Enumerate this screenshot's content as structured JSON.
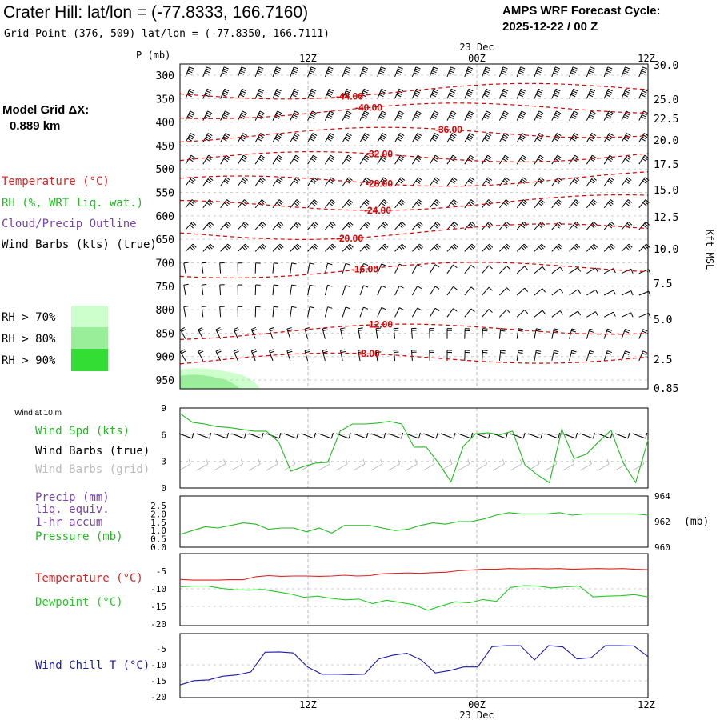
{
  "header": {
    "title": "Crater Hill:  lat/lon = (-77.8333, 166.7160)",
    "grid_point": "Grid Point (376, 509) lat/lon = (-77.8350, 166.7111)",
    "cycle_label": "AMPS WRF Forecast Cycle:",
    "cycle_value": "2025-12-22 / 00  Z",
    "grid_dx_label": "Model Grid ΔX:",
    "grid_dx_value": "0.889 km"
  },
  "legend": {
    "temperature": "Temperature (°C)",
    "rh": "RH (%, WRT liq. wat.)",
    "cloud": "Cloud/Precip Outline",
    "wind": "Wind Barbs (kts) (true)",
    "rh70": "RH > 70%",
    "rh80": "RH > 80%",
    "rh90": "RH > 90%",
    "colors": {
      "rh70": "#ccffcc",
      "rh80": "#99ee99",
      "rh90": "#33dd33"
    }
  },
  "time_axis": {
    "top_date": "23 Dec",
    "bottom_date": "23 Dec",
    "ticks": [
      "12Z",
      "00Z",
      "12Z"
    ]
  },
  "chart_data": [
    {
      "id": "cross_section",
      "type": "contour",
      "ylabel": "P (mb)",
      "pressure_ticks": [
        "300",
        "350",
        "400",
        "450",
        "500",
        "550",
        "600",
        "650",
        "700",
        "750",
        "800",
        "850",
        "900",
        "950"
      ],
      "height_label": "Kft MSL",
      "height_ticks": [
        "30.0",
        "25.0",
        "22.5",
        "20.0",
        "17.5",
        "15.0",
        "12.5",
        "10.0",
        "7.5",
        "5.0",
        "2.5",
        "0.85"
      ],
      "isotherms": [
        {
          "label": "-44.00",
          "p": 340
        },
        {
          "label": "-40.00",
          "p": 380
        },
        {
          "label": "-36.00",
          "p": 430
        },
        {
          "label": "-32.00",
          "p": 480
        },
        {
          "label": "-28.00",
          "p": 530
        },
        {
          "label": "-24.00",
          "p": 580
        },
        {
          "label": "-20.00",
          "p": 640
        },
        {
          "label": "-16.00",
          "p": 720
        },
        {
          "label": "-12.00",
          "p": 850
        },
        {
          "label": "-8.00",
          "p": 910
        }
      ],
      "color": "#dd0000"
    },
    {
      "id": "wind10m",
      "type": "line",
      "title": "Wind at 10 m",
      "series_label": "Wind Spd (kts)",
      "barbs_true_label": "Wind Barbs (true)",
      "barbs_grid_label": "Wind Barbs (grid)",
      "ylim": [
        0,
        9
      ],
      "yticks": [
        "9",
        "6",
        "3",
        "0"
      ],
      "values": [
        8.4,
        7.4,
        7.2,
        6.9,
        6.8,
        6.6,
        6.4,
        6.4,
        5.2,
        1.9,
        2.4,
        2.8,
        2.9,
        6.4,
        7.2,
        7.2,
        7.3,
        7.5,
        7.2,
        4.6,
        4.6,
        2.8,
        0.7,
        4.7,
        6.1,
        6.2,
        6.0,
        6.4,
        2.6,
        1.5,
        0.6,
        6.6,
        3.3,
        3.8,
        5.2,
        6.5,
        2.8,
        0.6,
        5.4
      ],
      "color": "#22bb22"
    },
    {
      "id": "precip_pressure",
      "type": "line",
      "precip_label": "Precip (mm)",
      "precip_label2": "liq. equiv.",
      "precip_label3": "1-hr accum",
      "pressure_label": "Pressure (mb)",
      "unit_right": "(mb)",
      "yticks_left": [
        "2.5",
        "2.0",
        "1.5",
        "1.0",
        "0.5",
        "0.0"
      ],
      "yticks_right": [
        "964",
        "962",
        "960"
      ],
      "ylim": [
        960,
        964
      ],
      "values": [
        961.0,
        961.3,
        961.6,
        961.5,
        961.7,
        961.9,
        961.8,
        961.4,
        961.5,
        961.5,
        961.2,
        961.5,
        961.1,
        961.7,
        961.7,
        961.7,
        961.5,
        961.3,
        961.4,
        961.7,
        961.9,
        961.8,
        962.0,
        962.0,
        962.2,
        962.5,
        962.7,
        962.6,
        962.6,
        962.6,
        962.7,
        962.5,
        962.6,
        962.6,
        962.6,
        962.6,
        962.6,
        962.5
      ],
      "color": "#22bb22"
    },
    {
      "id": "temp_dewpoint",
      "type": "line",
      "yticks": [
        "-5",
        "-10",
        "-15",
        "-20"
      ],
      "ylim": [
        -20,
        0
      ],
      "series": [
        {
          "name": "Temperature (°C)",
          "color": "#dd2222",
          "values": [
            -7.2,
            -7.4,
            -7.4,
            -7.4,
            -7.3,
            -7.3,
            -6.5,
            -6.2,
            -6.4,
            -6.3,
            -6.3,
            -6.4,
            -6.3,
            -6.1,
            -6.3,
            -6.2,
            -5.7,
            -5.6,
            -5.5,
            -5.6,
            -5.4,
            -5.3,
            -4.9,
            -4.7,
            -4.5,
            -4.5,
            -4.3,
            -4.4,
            -4.3,
            -4.4,
            -4.3,
            -4.5,
            -4.4,
            -4.3,
            -4.4,
            -4.3,
            -4.5,
            -4.6
          ]
        },
        {
          "name": "Dewpoint (°C)",
          "color": "#22cc22",
          "values": [
            -9.2,
            -9.0,
            -9.0,
            -9.6,
            -10.0,
            -10.1,
            -9.9,
            -10.5,
            -11.1,
            -12.0,
            -11.7,
            -12.3,
            -12.7,
            -12.5,
            -13.7,
            -12.8,
            -13.4,
            -14.0,
            -15.5,
            -14.3,
            -13.2,
            -13.5,
            -12.6,
            -13.1,
            -9.4,
            -8.9,
            -9.0,
            -9.5,
            -9.2,
            -9.0,
            -11.9,
            -11.7,
            -11.6,
            -11.3,
            -11.9
          ]
        }
      ]
    },
    {
      "id": "windchill",
      "type": "line",
      "series_label": "Wind Chill T (°C)",
      "yticks": [
        "-5",
        "-10",
        "-15",
        "-20"
      ],
      "ylim": [
        -20,
        0
      ],
      "values": [
        -16.0,
        -14.7,
        -14.5,
        -13.4,
        -13.0,
        -12.1,
        -6.2,
        -6.1,
        -6.4,
        -10.6,
        -12.8,
        -12.8,
        -12.9,
        -12.8,
        -8.2,
        -7.1,
        -6.5,
        -8.5,
        -12.4,
        -11.7,
        -10.6,
        -10.6,
        -4.5,
        -4.2,
        -4.2,
        -8.5,
        -4.2,
        -4.6,
        -8.2,
        -7.8,
        -4.2,
        -4.2,
        -4.3,
        -7.5
      ],
      "color": "#1a1aaa"
    }
  ]
}
